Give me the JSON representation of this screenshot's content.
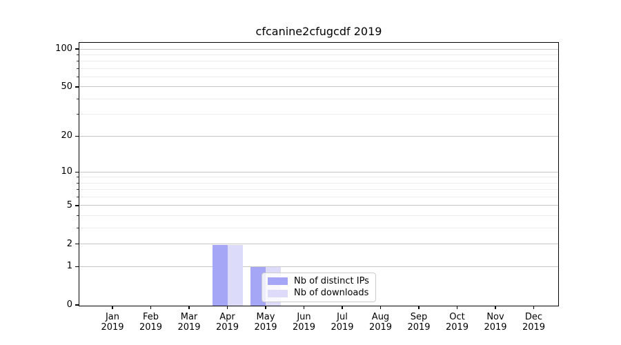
{
  "chart_data": {
    "type": "bar",
    "title": "cfcanine2cfugcdf 2019",
    "categories": [
      "Jan",
      "Feb",
      "Mar",
      "Apr",
      "May",
      "Jun",
      "Jul",
      "Aug",
      "Sep",
      "Oct",
      "Nov",
      "Dec"
    ],
    "x_year_label": "2019",
    "series": [
      {
        "name": "Nb of distinct IPs",
        "color": "#a6a6f7",
        "values": [
          0,
          0,
          0,
          2,
          1,
          0,
          0,
          0,
          0,
          0,
          0,
          0
        ]
      },
      {
        "name": "Nb of downloads",
        "color": "#dcdcfa",
        "values": [
          0,
          0,
          0,
          2,
          1,
          0,
          0,
          0,
          0,
          0,
          0,
          0
        ]
      }
    ],
    "y_ticks": [
      0,
      1,
      2,
      5,
      10,
      20,
      50,
      100
    ],
    "y_minor_ticks": [
      3,
      4,
      6,
      7,
      8,
      9,
      30,
      40,
      60,
      70,
      80,
      90
    ],
    "yscale": "log1p",
    "ylim": [
      0,
      112
    ],
    "xlabel": "",
    "ylabel": "",
    "grid": true,
    "legend_position": "lower center"
  },
  "colors": {
    "grid_major": "#c6c6c6",
    "grid_minor": "#ececec",
    "spine": "#000000",
    "text": "#000000",
    "legend_border": "#cccccc",
    "legend_background": "rgba(255,255,255,0.8)"
  }
}
